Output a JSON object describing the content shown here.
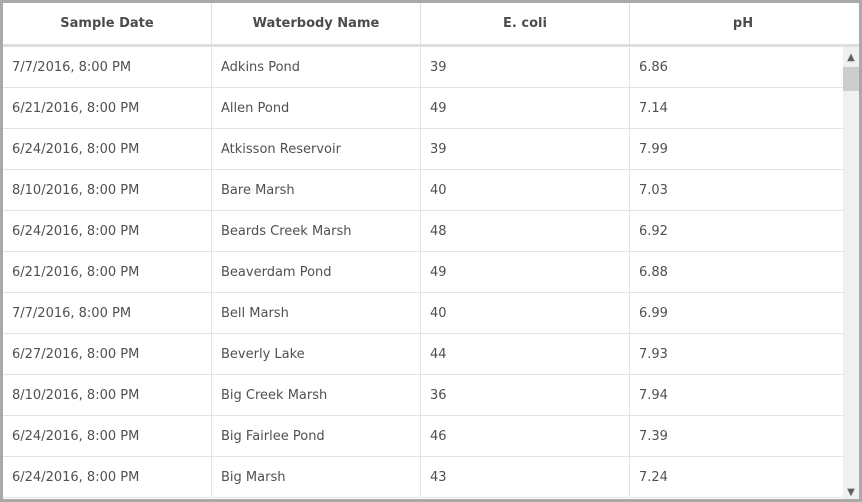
{
  "table": {
    "columns": [
      "Sample Date",
      "Waterbody Name",
      "E. coli",
      "pH"
    ],
    "rows": [
      [
        "7/7/2016, 8:00 PM",
        "Adkins Pond",
        "39",
        "6.86"
      ],
      [
        "6/21/2016, 8:00 PM",
        "Allen Pond",
        "49",
        "7.14"
      ],
      [
        "6/24/2016, 8:00 PM",
        "Atkisson Reservoir",
        "39",
        "7.99"
      ],
      [
        "8/10/2016, 8:00 PM",
        "Bare Marsh",
        "40",
        "7.03"
      ],
      [
        "6/24/2016, 8:00 PM",
        "Beards Creek Marsh",
        "48",
        "6.92"
      ],
      [
        "6/21/2016, 8:00 PM",
        "Beaverdam Pond",
        "49",
        "6.88"
      ],
      [
        "7/7/2016, 8:00 PM",
        "Bell Marsh",
        "40",
        "6.99"
      ],
      [
        "6/27/2016, 8:00 PM",
        "Beverly Lake",
        "44",
        "7.93"
      ],
      [
        "8/10/2016, 8:00 PM",
        "Big Creek Marsh",
        "36",
        "7.94"
      ],
      [
        "6/24/2016, 8:00 PM",
        "Big Fairlee Pond",
        "46",
        "7.39"
      ],
      [
        "6/24/2016, 8:00 PM",
        "Big Marsh",
        "43",
        "7.24"
      ]
    ]
  },
  "scrollbar": {
    "position_fraction": 0.0,
    "up_icon": "chevron-up-icon",
    "down_icon": "chevron-down-icon"
  }
}
